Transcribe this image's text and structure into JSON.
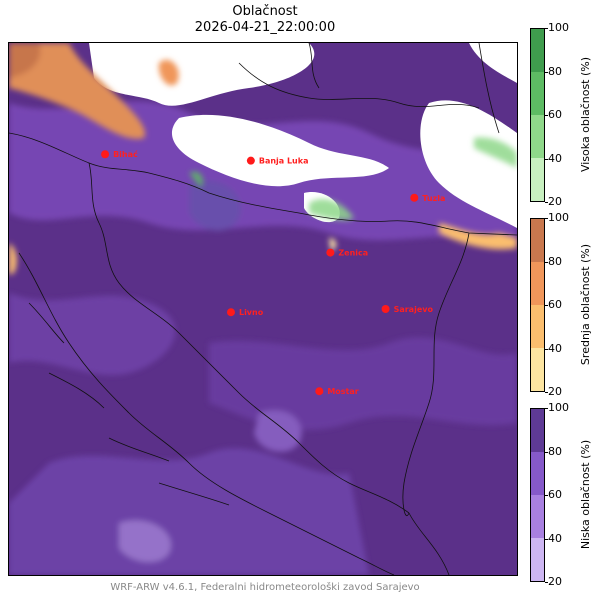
{
  "title": "Oblačnost",
  "datetime": "2026-04-21_22:00:00",
  "footer": "WRF-ARW v4.6.1, Federalni hidrometeorološki zavod Sarajevo",
  "cities": [
    {
      "name": "Bihać",
      "x": 15.87,
      "y": 44.81
    },
    {
      "name": "Banja Luka",
      "x": 17.19,
      "y": 44.77
    },
    {
      "name": "Tuzla",
      "x": 18.67,
      "y": 44.54
    },
    {
      "name": "Zenica",
      "x": 17.91,
      "y": 44.2
    },
    {
      "name": "Livno",
      "x": 17.01,
      "y": 43.83
    },
    {
      "name": "Sarajevo",
      "x": 18.41,
      "y": 43.85
    },
    {
      "name": "Mostar",
      "x": 17.81,
      "y": 43.34
    }
  ],
  "colorbars": [
    {
      "label": "Visoka oblačnost (%)",
      "ticks": [
        20,
        40,
        60,
        80,
        100
      ],
      "colors": [
        "#c8f0c0",
        "#8fd88a",
        "#5dbb63",
        "#3f9c4d"
      ]
    },
    {
      "label": "Srednja oblačnost (%)",
      "ticks": [
        20,
        40,
        60,
        80,
        100
      ],
      "colors": [
        "#fde5a1",
        "#fbbe6e",
        "#f0965a",
        "#c9784e"
      ]
    },
    {
      "label": "Niska oblačnost (%)",
      "ticks": [
        20,
        40,
        60,
        80,
        100
      ],
      "colors": [
        "#cdb6f2",
        "#a880e0",
        "#8559c9",
        "#5e3a95"
      ]
    }
  ]
}
